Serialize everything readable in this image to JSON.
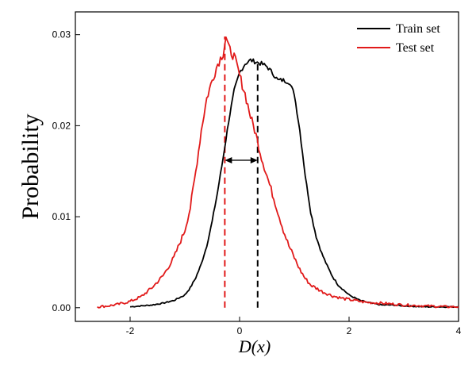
{
  "chart_data": {
    "type": "line",
    "title": "",
    "xlabel": "D(x)",
    "ylabel": "Probability",
    "xlim": [
      -3,
      4
    ],
    "ylim": [
      -0.0015,
      0.0325
    ],
    "xticks": [
      -2,
      0,
      2,
      4
    ],
    "xtick_labels": [
      "-2",
      "0",
      "2",
      "4"
    ],
    "yticks": [
      0,
      0.01,
      0.02,
      0.03
    ],
    "ytick_labels": [
      "0.00",
      "0.01",
      "0.02",
      "0.03"
    ],
    "grid": false,
    "legend_position": "top-right",
    "series": [
      {
        "name": "Train set",
        "color": "#000000",
        "points": [
          [
            -2.0,
            0.0001
          ],
          [
            -1.8,
            0.0002
          ],
          [
            -1.6,
            0.0003
          ],
          [
            -1.4,
            0.0005
          ],
          [
            -1.2,
            0.0008
          ],
          [
            -1.0,
            0.0014
          ],
          [
            -0.9,
            0.0022
          ],
          [
            -0.8,
            0.0033
          ],
          [
            -0.7,
            0.0048
          ],
          [
            -0.6,
            0.0068
          ],
          [
            -0.5,
            0.0095
          ],
          [
            -0.4,
            0.0128
          ],
          [
            -0.3,
            0.0165
          ],
          [
            -0.2,
            0.0205
          ],
          [
            -0.1,
            0.0238
          ],
          [
            0.0,
            0.0258
          ],
          [
            0.1,
            0.0268
          ],
          [
            0.2,
            0.0272
          ],
          [
            0.3,
            0.027
          ],
          [
            0.4,
            0.0268
          ],
          [
            0.5,
            0.0265
          ],
          [
            0.6,
            0.0258
          ],
          [
            0.7,
            0.025
          ],
          [
            0.8,
            0.025
          ],
          [
            0.9,
            0.0248
          ],
          [
            1.0,
            0.0235
          ],
          [
            1.1,
            0.0195
          ],
          [
            1.2,
            0.0145
          ],
          [
            1.3,
            0.0105
          ],
          [
            1.4,
            0.0078
          ],
          [
            1.5,
            0.006
          ],
          [
            1.6,
            0.0046
          ],
          [
            1.7,
            0.0034
          ],
          [
            1.8,
            0.0025
          ],
          [
            2.0,
            0.0014
          ],
          [
            2.2,
            0.0008
          ],
          [
            2.4,
            0.0005
          ],
          [
            2.6,
            0.0003
          ],
          [
            2.8,
            0.0003
          ],
          [
            3.0,
            0.0002
          ],
          [
            3.4,
            0.0001
          ],
          [
            3.8,
            0.0001
          ],
          [
            4.0,
            0.0001
          ]
        ]
      },
      {
        "name": "Test set",
        "color": "#e11a1a",
        "points": [
          [
            -2.6,
            0.0001
          ],
          [
            -2.4,
            0.0002
          ],
          [
            -2.2,
            0.0004
          ],
          [
            -2.0,
            0.0007
          ],
          [
            -1.8,
            0.0012
          ],
          [
            -1.6,
            0.0022
          ],
          [
            -1.4,
            0.0035
          ],
          [
            -1.2,
            0.0055
          ],
          [
            -1.0,
            0.0085
          ],
          [
            -0.9,
            0.011
          ],
          [
            -0.8,
            0.015
          ],
          [
            -0.7,
            0.0195
          ],
          [
            -0.6,
            0.023
          ],
          [
            -0.5,
            0.025
          ],
          [
            -0.4,
            0.0268
          ],
          [
            -0.3,
            0.028
          ],
          [
            -0.25,
            0.0298
          ],
          [
            -0.2,
            0.0285
          ],
          [
            -0.1,
            0.0276
          ],
          [
            0.0,
            0.0255
          ],
          [
            0.1,
            0.0235
          ],
          [
            0.2,
            0.021
          ],
          [
            0.3,
            0.019
          ],
          [
            0.4,
            0.0165
          ],
          [
            0.5,
            0.0145
          ],
          [
            0.6,
            0.0125
          ],
          [
            0.7,
            0.0105
          ],
          [
            0.8,
            0.0085
          ],
          [
            0.9,
            0.0068
          ],
          [
            1.0,
            0.0055
          ],
          [
            1.1,
            0.0042
          ],
          [
            1.2,
            0.0032
          ],
          [
            1.3,
            0.0025
          ],
          [
            1.5,
            0.0018
          ],
          [
            1.7,
            0.0013
          ],
          [
            1.9,
            0.001
          ],
          [
            2.1,
            0.0008
          ],
          [
            2.3,
            0.0006
          ],
          [
            2.6,
            0.0005
          ],
          [
            3.0,
            0.0003
          ],
          [
            3.4,
            0.0002
          ],
          [
            3.8,
            0.0001
          ],
          [
            4.0,
            0.0001
          ]
        ]
      }
    ],
    "reference_lines": [
      {
        "name": "Train set mean",
        "x": 0.33,
        "color": "#000000"
      },
      {
        "name": "Test set mean",
        "x": -0.27,
        "color": "#e11a1a"
      }
    ],
    "annotations": [
      {
        "type": "double-arrow",
        "x_from": -0.27,
        "x_to": 0.33,
        "y": 0.0162
      }
    ]
  }
}
